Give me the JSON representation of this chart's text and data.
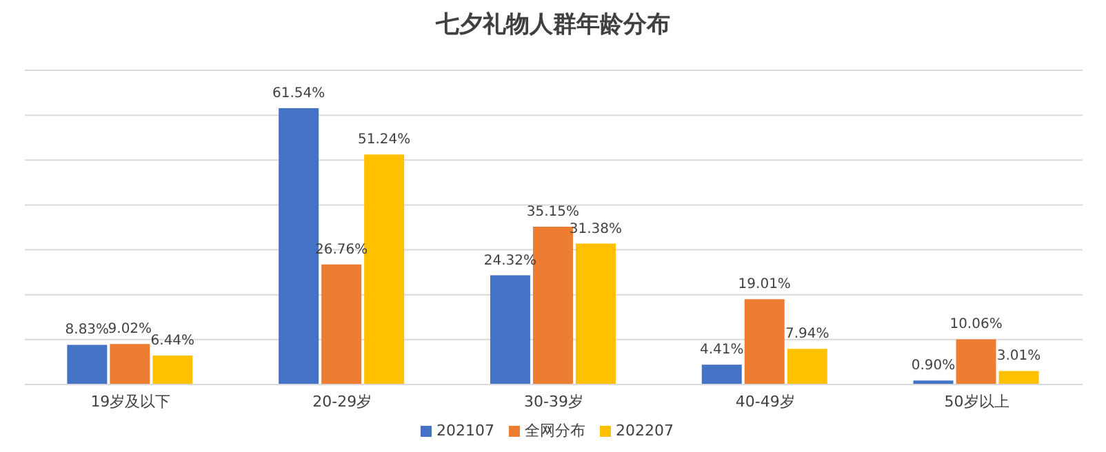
{
  "chart_data": {
    "type": "bar",
    "title": "七夕礼物人群年龄分布",
    "categories": [
      "19岁及以下",
      "20-29岁",
      "30-39岁",
      "40-49岁",
      "50岁以上"
    ],
    "series": [
      {
        "name": "202107",
        "color": "#4472c4",
        "values": [
          8.83,
          61.54,
          24.32,
          4.41,
          0.9
        ],
        "value_labels": [
          "8.83%",
          "61.54%",
          "24.32%",
          "4.41%",
          "0.90%"
        ]
      },
      {
        "name": "全网分布",
        "color": "#ed7d31",
        "values": [
          9.02,
          26.76,
          35.15,
          19.01,
          10.06
        ],
        "value_labels": [
          "9.02%",
          "26.76%",
          "35.15%",
          "19.01%",
          "10.06%"
        ]
      },
      {
        "name": "202207",
        "color": "#ffc000",
        "values": [
          6.44,
          51.24,
          31.38,
          7.94,
          3.01
        ],
        "value_labels": [
          "6.44%",
          "51.24%",
          "31.38%",
          "7.94%",
          "3.01%"
        ]
      }
    ],
    "ylim": [
      0,
      70
    ],
    "yticks": [
      {
        "value": 0,
        "label": null
      },
      {
        "value": 10,
        "label": null
      },
      {
        "value": 20,
        "label": null
      },
      {
        "value": 30,
        "label": null
      },
      {
        "value": 40,
        "label": null
      },
      {
        "value": 50,
        "label": null
      },
      {
        "value": 60,
        "label": null
      },
      {
        "value": 70,
        "label": null
      }
    ],
    "grid": "y",
    "legend": "bottom",
    "tick_labels": "x"
  }
}
